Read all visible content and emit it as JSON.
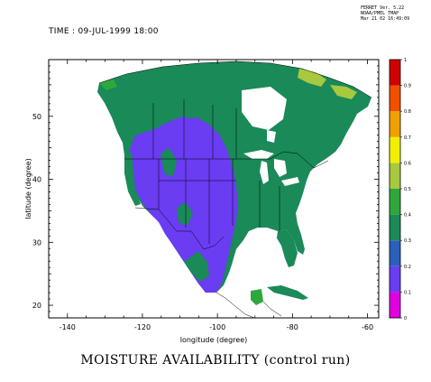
{
  "header": {
    "line1": "FERRET Ver. 5.22",
    "line2": "NOAA/PMEL TMAP",
    "line3": "Mar 21 02 16:49:09"
  },
  "time_label": "TIME : 09-JUL-1999 18:00",
  "caption": "MOISTURE AVAILABILITY (control run)",
  "chart_data": {
    "type": "heatmap",
    "title": "MOISTURE AVAILABILITY (control run)",
    "xlabel": "longitude (degree)",
    "ylabel": "latitude (degree)",
    "xlim": [
      -145,
      -57
    ],
    "ylim": [
      18,
      59
    ],
    "x_ticks": [
      -140,
      -120,
      -100,
      -80,
      -60
    ],
    "x_tick_labels": [
      "-140",
      "-120",
      "-100",
      "-80",
      "-60"
    ],
    "y_ticks": [
      20,
      30,
      40,
      50
    ],
    "y_tick_labels": [
      "20",
      "30",
      "40",
      "50"
    ],
    "colorbar": {
      "levels": [
        0,
        0.1,
        0.2,
        0.3,
        0.4,
        0.5,
        0.6,
        0.7,
        0.8,
        0.9,
        1
      ],
      "level_labels": [
        "0",
        "0.1",
        "0.2",
        "0.3",
        "0.4",
        "0.5",
        "0.6",
        "0.7",
        "0.8",
        "0.9",
        "1"
      ],
      "colors": [
        "#e000e0",
        "#6a3cf2",
        "#2c5fbd",
        "#198a58",
        "#2ea83c",
        "#a8c840",
        "#f0f000",
        "#f0a000",
        "#f05000",
        "#d00000"
      ]
    },
    "regions": [
      {
        "area": "western US interior (Great Basin to Rockies)",
        "value": 0.15
      },
      {
        "area": "western Mexico / Sierra Madre",
        "value": 0.15
      },
      {
        "area": "Pacific Northwest coast",
        "value": 0.35
      },
      {
        "area": "central and eastern US",
        "value": 0.35
      },
      {
        "area": "southern and central Canada",
        "value": 0.35
      },
      {
        "area": "Hudson Bay / northern Canada",
        "value": 0.45
      },
      {
        "area": "Yucatan peninsula",
        "value": 0.45
      }
    ]
  }
}
